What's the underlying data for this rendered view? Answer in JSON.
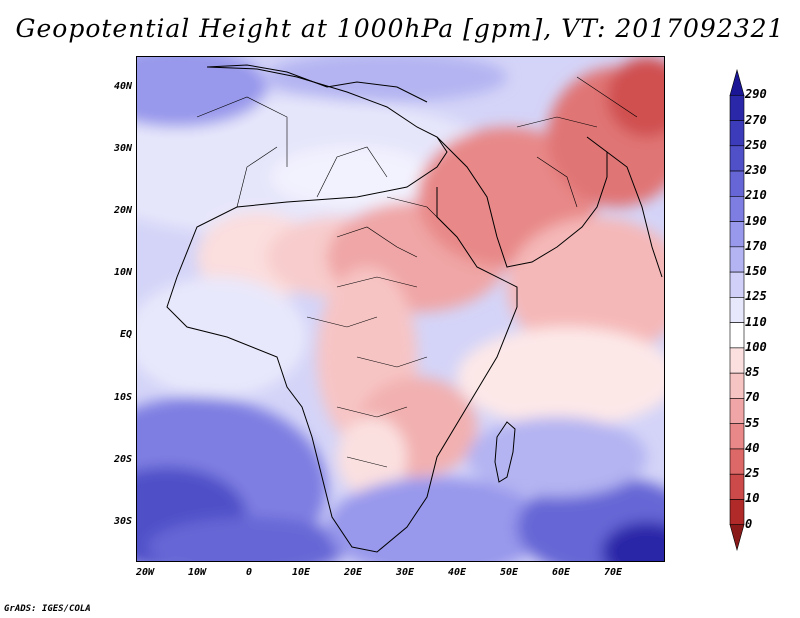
{
  "title": "Geopotential Height at 1000hPa [gpm], VT: 2017092321",
  "credit": "GrADS: IGES/COLA",
  "map": {
    "lat_labels": [
      "40N",
      "30N",
      "20N",
      "10N",
      "EQ",
      "10S",
      "20S",
      "30S"
    ],
    "lon_labels": [
      "20W",
      "10W",
      "0",
      "10E",
      "20E",
      "30E",
      "40E",
      "50E",
      "60E",
      "70E"
    ],
    "region": "Africa, Middle East and Arabian Sea",
    "lon_range": [
      -22,
      80
    ],
    "lat_range": [
      -37,
      45
    ]
  },
  "colorbar": {
    "levels": [
      "290",
      "270",
      "250",
      "230",
      "210",
      "190",
      "170",
      "150",
      "125",
      "110",
      "100",
      "85",
      "70",
      "55",
      "40",
      "25",
      "10",
      "0"
    ],
    "colors": [
      "#1a1696",
      "#2a28a8",
      "#3c3cba",
      "#5050c8",
      "#6666d6",
      "#7e7ee2",
      "#9898ec",
      "#b4b4f2",
      "#d0d0f8",
      "#e8e8fc",
      "#ffffff",
      "#fce0e0",
      "#f7c4c4",
      "#f0a6a6",
      "#e88888",
      "#dc6868",
      "#cc4a4a",
      "#b02a2a",
      "#8a1a1a"
    ]
  }
}
